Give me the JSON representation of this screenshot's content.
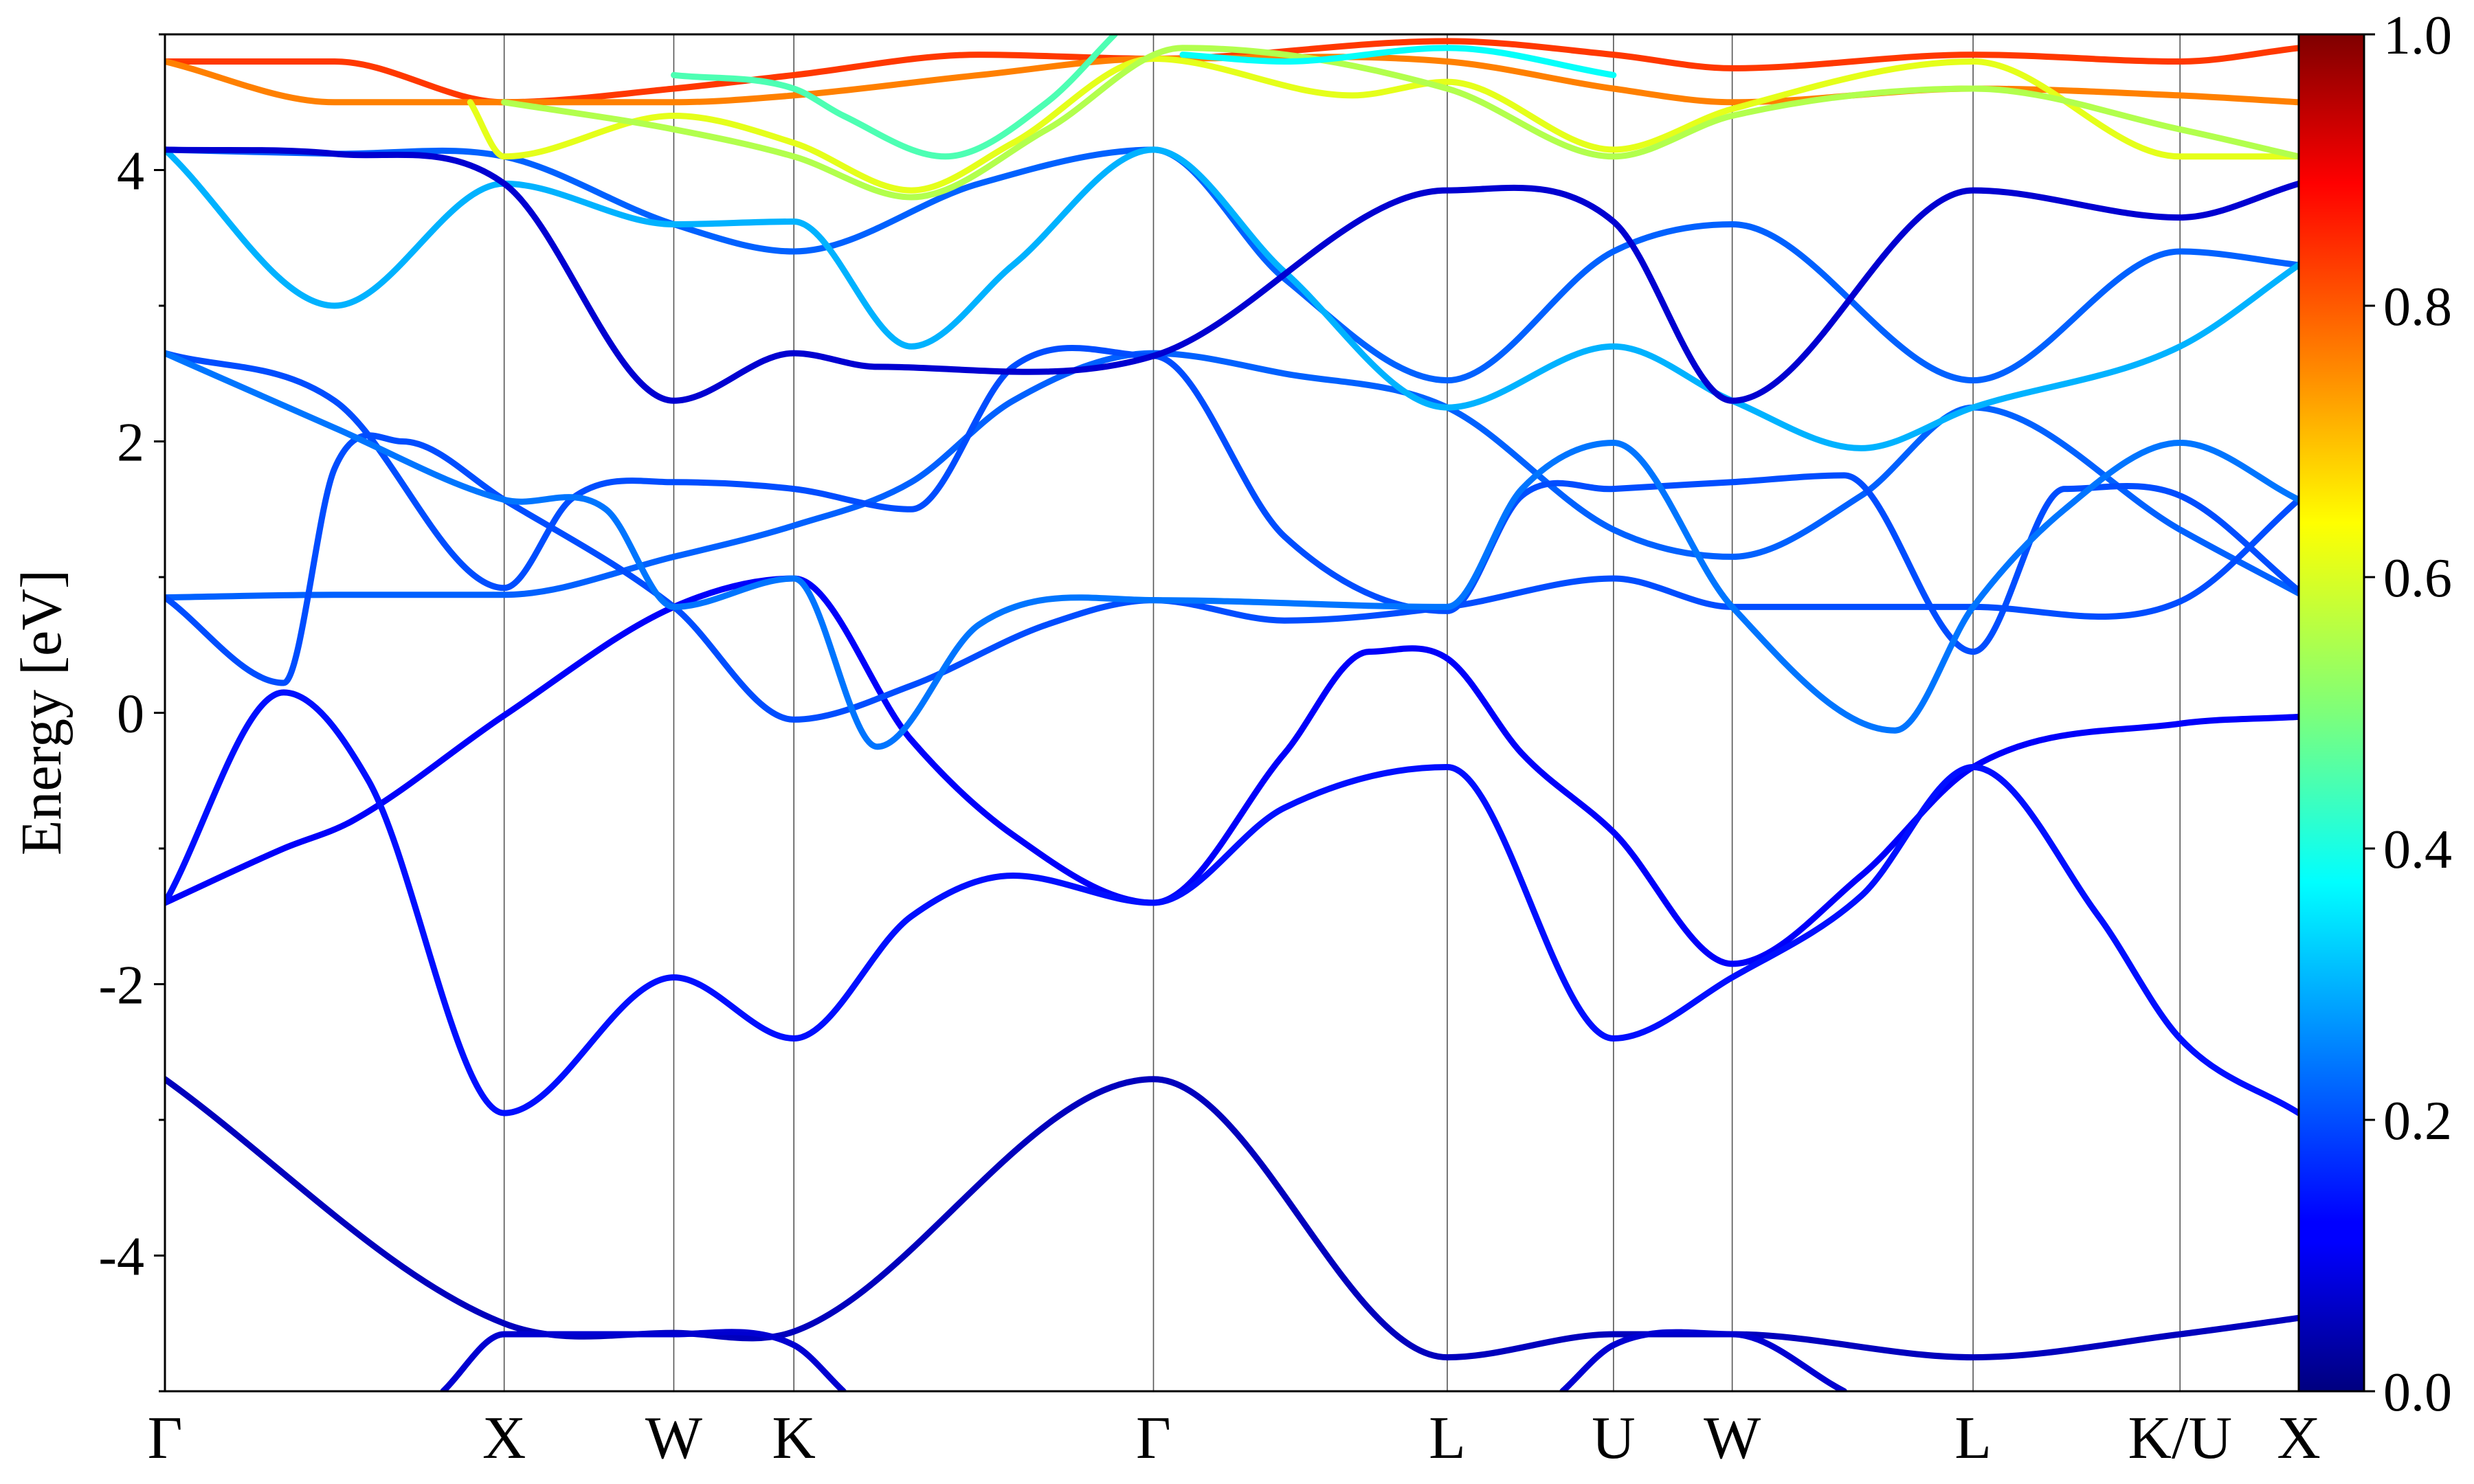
{
  "chart_data": {
    "type": "line",
    "ylabel": "Energy [eV]",
    "ylim": [
      -5,
      5
    ],
    "yticks": [
      -4,
      -2,
      0,
      2,
      4
    ],
    "k_labels": [
      "Γ",
      "X",
      "W",
      "K",
      "Γ",
      "L",
      "U",
      "W",
      "L",
      "K/U",
      "X"
    ],
    "k_positions": [
      0,
      1.0,
      1.5,
      1.854,
      2.914,
      3.78,
      4.27,
      4.62,
      5.33,
      5.94,
      6.29
    ],
    "colorbar": {
      "colormap": "jet",
      "range": [
        0.0,
        1.0
      ],
      "tick_labels": [
        "0.0",
        "0.2",
        "0.4",
        "0.6",
        "0.8",
        "1.0"
      ]
    },
    "grid": false,
    "legend": "none",
    "series": [
      {
        "values": [
          [
            0,
            -2.7,
            0.06
          ],
          [
            1.0,
            -4.5,
            0.06
          ],
          [
            1.5,
            -4.57,
            0.06
          ],
          [
            1.854,
            -4.56,
            0.06
          ],
          [
            2.914,
            -2.7,
            0.06
          ],
          [
            3.78,
            -4.75,
            0.06
          ],
          [
            4.27,
            -4.58,
            0.06
          ],
          [
            4.62,
            -4.58,
            0.06
          ],
          [
            5.33,
            -4.75,
            0.06
          ],
          [
            5.94,
            -4.58,
            0.06
          ],
          [
            6.29,
            -4.46,
            0.06
          ]
        ]
      },
      {
        "values": [
          [
            0.82,
            -5.0,
            0.08
          ],
          [
            1.0,
            -4.58,
            0.08
          ],
          [
            1.5,
            -4.58,
            0.08
          ],
          [
            1.854,
            -4.66,
            0.08
          ],
          [
            2.0,
            -5.0,
            0.08
          ]
        ]
      },
      {
        "values": [
          [
            4.12,
            -5.0,
            0.08
          ],
          [
            4.27,
            -4.66,
            0.08
          ],
          [
            4.62,
            -4.58,
            0.08
          ],
          [
            4.95,
            -5.0,
            0.08
          ]
        ]
      },
      {
        "values": [
          [
            0,
            -1.4,
            0.12
          ],
          [
            0.35,
            -1.0,
            0.12
          ],
          [
            0.55,
            -0.8,
            0.12
          ],
          [
            1.0,
            -0.02,
            0.12
          ],
          [
            1.5,
            0.78,
            0.12
          ],
          [
            1.854,
            0.99,
            0.12
          ],
          [
            2.2,
            -0.2,
            0.12
          ],
          [
            2.5,
            -0.9,
            0.12
          ],
          [
            2.914,
            -1.4,
            0.12
          ],
          [
            3.3,
            -0.3,
            0.12
          ],
          [
            3.55,
            0.45,
            0.12
          ],
          [
            3.78,
            0.4,
            0.12
          ],
          [
            4.0,
            -0.3,
            0.12
          ],
          [
            4.27,
            -0.88,
            0.12
          ],
          [
            4.62,
            -1.85,
            0.12
          ],
          [
            5.0,
            -1.2,
            0.12
          ],
          [
            5.33,
            -0.4,
            0.12
          ],
          [
            5.94,
            -0.08,
            0.12
          ],
          [
            6.29,
            -0.03,
            0.12
          ]
        ]
      },
      {
        "values": [
          [
            0,
            -1.4,
            0.14
          ],
          [
            0.35,
            0.15,
            0.14
          ],
          [
            0.6,
            -0.5,
            0.14
          ],
          [
            1.0,
            -2.95,
            0.14
          ],
          [
            1.5,
            -1.95,
            0.14
          ],
          [
            1.854,
            -2.4,
            0.14
          ],
          [
            2.2,
            -1.5,
            0.14
          ],
          [
            2.5,
            -1.2,
            0.14
          ],
          [
            2.914,
            -1.4,
            0.14
          ],
          [
            3.3,
            -0.7,
            0.14
          ],
          [
            3.78,
            -0.4,
            0.14
          ],
          [
            4.27,
            -2.4,
            0.14
          ],
          [
            4.62,
            -1.95,
            0.14
          ],
          [
            5.0,
            -1.35,
            0.14
          ],
          [
            5.33,
            -0.4,
            0.14
          ],
          [
            5.7,
            -1.5,
            0.14
          ],
          [
            5.94,
            -2.4,
            0.14
          ],
          [
            6.29,
            -2.95,
            0.14
          ]
        ]
      },
      {
        "values": [
          [
            0,
            0.85,
            0.22
          ],
          [
            0.5,
            0.87,
            0.22
          ],
          [
            1.0,
            0.87,
            0.22
          ],
          [
            1.5,
            1.15,
            0.22
          ],
          [
            1.854,
            1.38,
            0.22
          ],
          [
            2.2,
            1.7,
            0.22
          ],
          [
            2.5,
            2.3,
            0.22
          ],
          [
            2.914,
            2.65,
            0.22
          ],
          [
            3.3,
            2.5,
            0.22
          ],
          [
            3.78,
            2.25,
            0.22
          ],
          [
            4.27,
            1.35,
            0.22
          ],
          [
            4.62,
            1.15,
            0.22
          ],
          [
            5.0,
            1.6,
            0.22
          ],
          [
            5.33,
            2.25,
            0.22
          ],
          [
            5.94,
            1.35,
            0.22
          ],
          [
            6.29,
            0.88,
            0.22
          ]
        ]
      },
      {
        "values": [
          [
            0,
            0.85,
            0.2
          ],
          [
            0.35,
            0.22,
            0.2
          ],
          [
            0.5,
            1.8,
            0.2
          ],
          [
            0.7,
            2.0,
            0.2
          ],
          [
            1.0,
            1.57,
            0.2
          ],
          [
            1.5,
            0.78,
            0.2
          ],
          [
            1.854,
            -0.05,
            0.2
          ],
          [
            2.2,
            0.2,
            0.2
          ],
          [
            2.6,
            0.65,
            0.2
          ],
          [
            2.914,
            0.83,
            0.2
          ],
          [
            3.3,
            0.68,
            0.2
          ],
          [
            3.78,
            0.78,
            0.2
          ],
          [
            4.27,
            0.99,
            0.2
          ],
          [
            4.62,
            0.78,
            0.2
          ],
          [
            5.33,
            0.78,
            0.2
          ],
          [
            5.94,
            0.82,
            0.2
          ],
          [
            6.29,
            1.57,
            0.2
          ]
        ]
      },
      {
        "values": [
          [
            0,
            2.65,
            0.2
          ],
          [
            0.5,
            2.3,
            0.2
          ],
          [
            1.0,
            0.92,
            0.2
          ],
          [
            1.2,
            1.58,
            0.2
          ],
          [
            1.5,
            1.7,
            0.2
          ],
          [
            1.854,
            1.65,
            0.2
          ],
          [
            2.2,
            1.5,
            0.2
          ],
          [
            2.5,
            2.55,
            0.2
          ],
          [
            2.914,
            2.63,
            0.2
          ],
          [
            3.3,
            1.3,
            0.2
          ],
          [
            3.78,
            0.75,
            0.2
          ],
          [
            4.0,
            1.6,
            0.2
          ],
          [
            4.27,
            1.65,
            0.2
          ],
          [
            4.62,
            1.7,
            0.2
          ],
          [
            4.95,
            1.75,
            0.2
          ],
          [
            5.33,
            0.45,
            0.2
          ],
          [
            5.6,
            1.65,
            0.2
          ],
          [
            5.94,
            1.6,
            0.2
          ],
          [
            6.29,
            0.9,
            0.2
          ]
        ]
      },
      {
        "values": [
          [
            0,
            2.65,
            0.24
          ],
          [
            0.5,
            2.1,
            0.24
          ],
          [
            1.0,
            1.57,
            0.24
          ],
          [
            1.3,
            1.5,
            0.24
          ],
          [
            1.5,
            0.78,
            0.24
          ],
          [
            1.854,
            0.99,
            0.24
          ],
          [
            2.1,
            -0.25,
            0.24
          ],
          [
            2.4,
            0.65,
            0.24
          ],
          [
            2.914,
            0.83,
            0.24
          ],
          [
            3.78,
            0.78,
            0.24
          ],
          [
            4.0,
            1.65,
            0.24
          ],
          [
            4.27,
            1.99,
            0.24
          ],
          [
            4.62,
            0.78,
            0.24
          ],
          [
            5.1,
            -0.13,
            0.24
          ],
          [
            5.33,
            0.78,
            0.24
          ],
          [
            5.6,
            1.5,
            0.24
          ],
          [
            5.94,
            1.99,
            0.24
          ],
          [
            6.29,
            1.57,
            0.24
          ]
        ]
      },
      {
        "values": [
          [
            0,
            4.15,
            0.22
          ],
          [
            0.5,
            4.12,
            0.22
          ],
          [
            1.0,
            4.1,
            0.22
          ],
          [
            1.5,
            3.6,
            0.22
          ],
          [
            1.854,
            3.4,
            0.22
          ],
          [
            2.4,
            3.9,
            0.22
          ],
          [
            2.914,
            4.15,
            0.22
          ],
          [
            3.3,
            3.2,
            0.22
          ],
          [
            3.78,
            2.45,
            0.22
          ],
          [
            4.27,
            3.4,
            0.22
          ],
          [
            4.62,
            3.6,
            0.22
          ],
          [
            5.33,
            2.45,
            0.22
          ],
          [
            5.94,
            3.4,
            0.22
          ],
          [
            6.29,
            3.3,
            0.22
          ]
        ]
      },
      {
        "values": [
          [
            0,
            4.15,
            0.3
          ],
          [
            0.5,
            3.0,
            0.3
          ],
          [
            1.0,
            3.9,
            0.3
          ],
          [
            1.5,
            3.6,
            0.3
          ],
          [
            1.854,
            3.62,
            0.3
          ],
          [
            2.2,
            2.7,
            0.3
          ],
          [
            2.5,
            3.3,
            0.3
          ],
          [
            2.914,
            4.15,
            0.3
          ],
          [
            3.3,
            3.25,
            0.3
          ],
          [
            3.78,
            2.25,
            0.3
          ],
          [
            4.27,
            2.7,
            0.3
          ],
          [
            4.62,
            2.3,
            0.3
          ],
          [
            5.0,
            1.95,
            0.3
          ],
          [
            5.33,
            2.25,
            0.3
          ],
          [
            5.94,
            2.7,
            0.3
          ],
          [
            6.29,
            3.3,
            0.3
          ]
        ]
      },
      {
        "values": [
          [
            0,
            4.15,
            0.08
          ],
          [
            0.5,
            4.12,
            0.08
          ],
          [
            1.0,
            3.9,
            0.08
          ],
          [
            1.5,
            2.3,
            0.08
          ],
          [
            1.854,
            2.65,
            0.08
          ],
          [
            2.1,
            2.55,
            0.08
          ],
          [
            2.914,
            2.63,
            0.08
          ],
          [
            3.78,
            3.85,
            0.08
          ],
          [
            4.27,
            3.62,
            0.08
          ],
          [
            4.62,
            2.3,
            0.08
          ],
          [
            5.33,
            3.85,
            0.08
          ],
          [
            5.94,
            3.65,
            0.08
          ],
          [
            6.29,
            3.9,
            0.08
          ]
        ]
      },
      {
        "values": [
          [
            0,
            4.8,
            0.82
          ],
          [
            0.5,
            4.8,
            0.82
          ],
          [
            1.0,
            4.5,
            0.82
          ],
          [
            1.5,
            4.6,
            0.82
          ],
          [
            1.854,
            4.7,
            0.82
          ],
          [
            2.4,
            4.85,
            0.82
          ],
          [
            2.914,
            4.82,
            0.82
          ],
          [
            3.78,
            4.95,
            0.82
          ],
          [
            4.27,
            4.85,
            0.82
          ],
          [
            4.62,
            4.75,
            0.82
          ],
          [
            5.33,
            4.85,
            0.82
          ],
          [
            5.94,
            4.8,
            0.82
          ],
          [
            6.29,
            4.9,
            0.82
          ]
        ]
      },
      {
        "values": [
          [
            0,
            4.8,
            0.75
          ],
          [
            0.5,
            4.5,
            0.75
          ],
          [
            1.0,
            4.5,
            0.75
          ],
          [
            1.5,
            4.5,
            0.75
          ],
          [
            1.854,
            4.55,
            0.75
          ],
          [
            2.4,
            4.7,
            0.75
          ],
          [
            2.914,
            4.82,
            0.75
          ],
          [
            3.78,
            4.8,
            0.75
          ],
          [
            4.27,
            4.6,
            0.75
          ],
          [
            4.62,
            4.5,
            0.75
          ],
          [
            5.33,
            4.6,
            0.75
          ],
          [
            5.94,
            4.55,
            0.75
          ],
          [
            6.29,
            4.5,
            0.75
          ]
        ]
      },
      {
        "values": [
          [
            0.9,
            4.5,
            0.6
          ],
          [
            1.0,
            4.1,
            0.6
          ],
          [
            1.5,
            4.4,
            0.6
          ],
          [
            1.854,
            4.2,
            0.6
          ],
          [
            2.2,
            3.85,
            0.6
          ],
          [
            2.5,
            4.2,
            0.6
          ],
          [
            2.914,
            4.82,
            0.6
          ],
          [
            3.5,
            4.55,
            0.6
          ],
          [
            3.78,
            4.65,
            0.6
          ],
          [
            4.27,
            4.15,
            0.6
          ],
          [
            4.62,
            4.45,
            0.6
          ],
          [
            5.33,
            4.8,
            0.6
          ],
          [
            5.94,
            4.1,
            0.6
          ],
          [
            6.29,
            4.1,
            0.6
          ]
        ]
      },
      {
        "values": [
          [
            1.0,
            4.5,
            0.55
          ],
          [
            1.5,
            4.3,
            0.55
          ],
          [
            1.854,
            4.1,
            0.55
          ],
          [
            2.2,
            3.8,
            0.55
          ],
          [
            2.6,
            4.3,
            0.55
          ],
          [
            3.0,
            4.9,
            0.55
          ],
          [
            3.78,
            4.6,
            0.55
          ],
          [
            4.27,
            4.1,
            0.55
          ],
          [
            4.62,
            4.4,
            0.55
          ],
          [
            5.33,
            4.6,
            0.55
          ],
          [
            5.94,
            4.3,
            0.55
          ],
          [
            6.29,
            4.1,
            0.55
          ]
        ]
      },
      {
        "values": [
          [
            1.5,
            4.7,
            0.45
          ],
          [
            1.854,
            4.6,
            0.45
          ],
          [
            2.0,
            4.4,
            0.45
          ],
          [
            2.3,
            4.1,
            0.45
          ],
          [
            2.6,
            4.5,
            0.45
          ],
          [
            2.8,
            5.0,
            0.45
          ]
        ]
      },
      {
        "values": [
          [
            3.0,
            4.85,
            0.38
          ],
          [
            3.3,
            4.8,
            0.38
          ],
          [
            3.78,
            4.9,
            0.38
          ],
          [
            4.27,
            4.7,
            0.38
          ]
        ]
      }
    ]
  }
}
